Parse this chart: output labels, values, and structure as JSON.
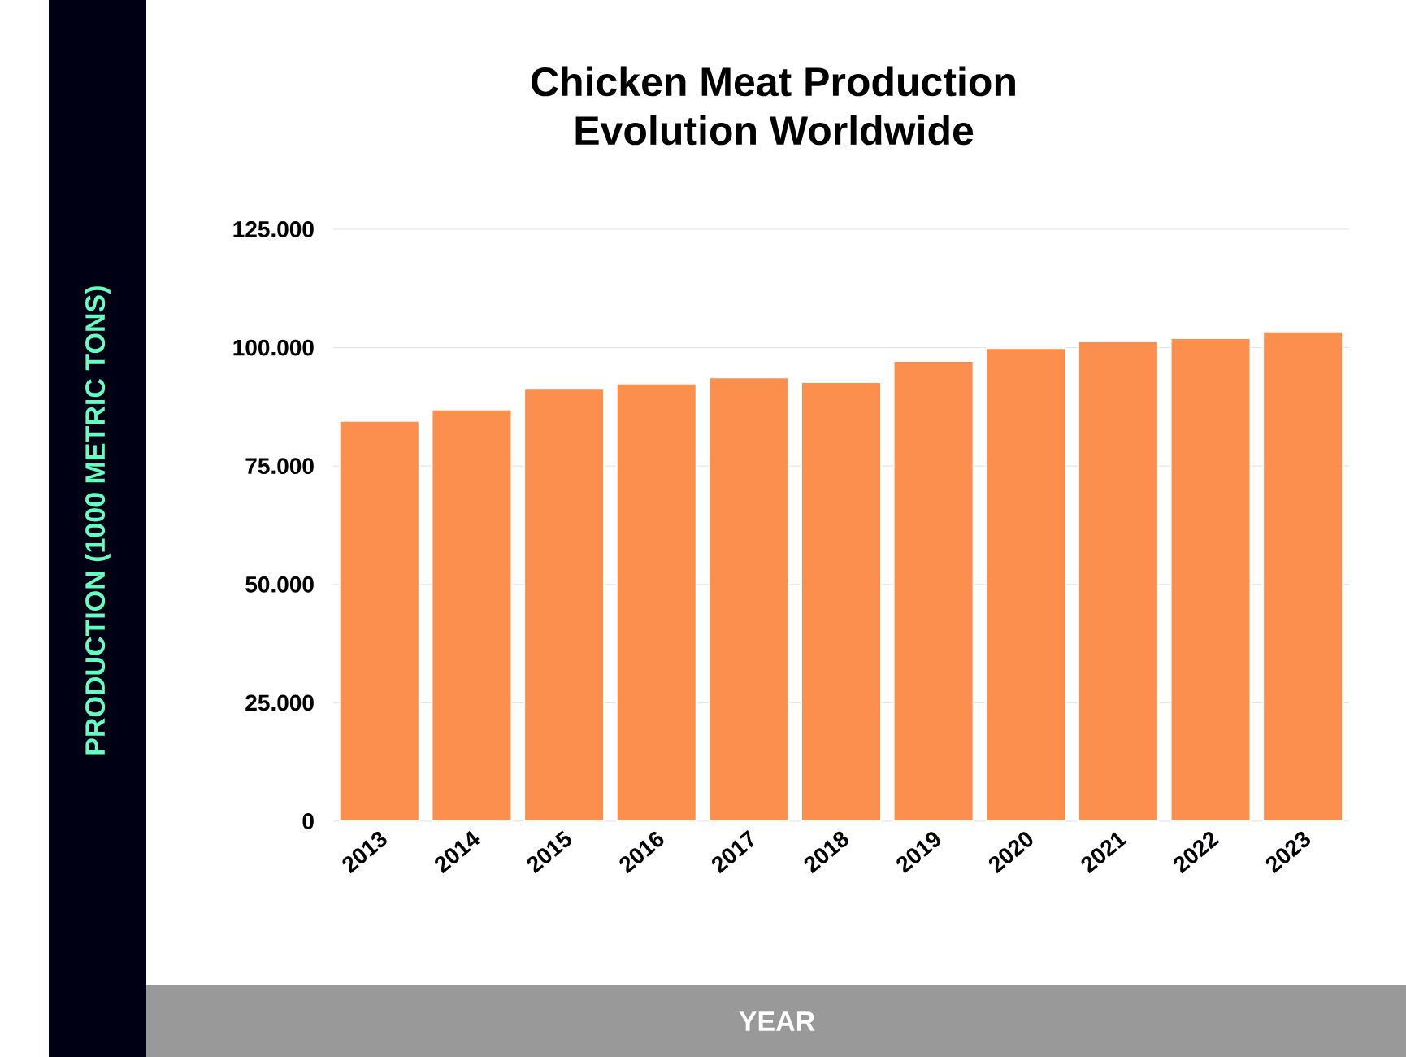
{
  "chart_data": {
    "type": "bar",
    "title": "Chicken Meat Production\nEvolution Worldwide",
    "xlabel": "YEAR",
    "ylabel": "PRODUCTION (1000 METRIC TONS)",
    "categories": [
      "2013",
      "2014",
      "2015",
      "2016",
      "2017",
      "2018",
      "2019",
      "2020",
      "2021",
      "2022",
      "2023"
    ],
    "values": [
      84500,
      86900,
      91300,
      92400,
      93700,
      92700,
      97200,
      99900,
      101300,
      102000,
      103400
    ],
    "color": "#fd8f4e",
    "ylim": [
      0,
      125000
    ],
    "yticks": [
      {
        "value": 0,
        "label": "0"
      },
      {
        "value": 25000,
        "label": "25.000"
      },
      {
        "value": 50000,
        "label": "50.000"
      },
      {
        "value": 75000,
        "label": "75.000"
      },
      {
        "value": 100000,
        "label": "100.000"
      },
      {
        "value": 125000,
        "label": "125.000"
      }
    ],
    "grid": "y"
  }
}
